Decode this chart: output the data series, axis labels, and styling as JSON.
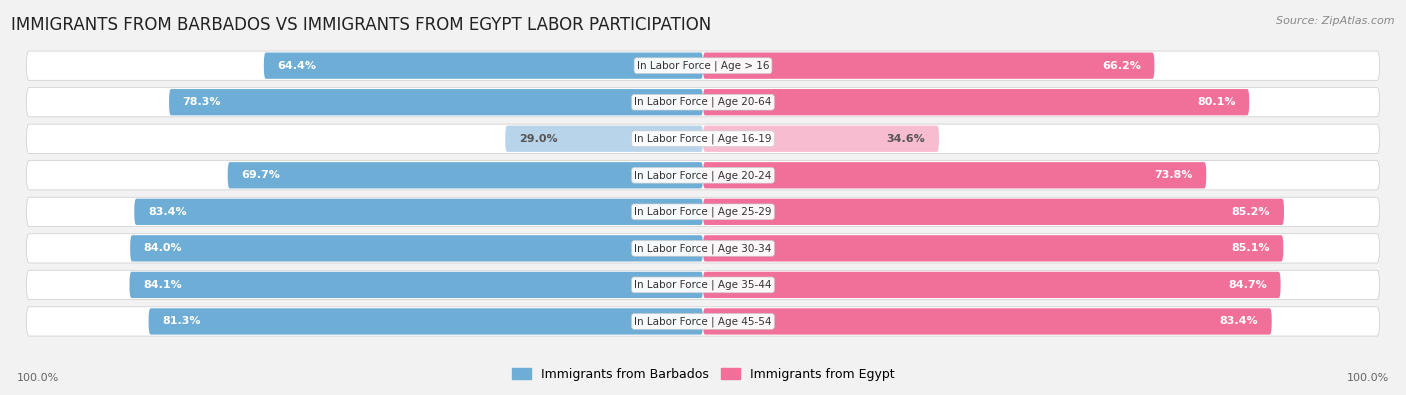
{
  "title": "IMMIGRANTS FROM BARBADOS VS IMMIGRANTS FROM EGYPT LABOR PARTICIPATION",
  "source": "Source: ZipAtlas.com",
  "categories": [
    "In Labor Force | Age > 16",
    "In Labor Force | Age 20-64",
    "In Labor Force | Age 16-19",
    "In Labor Force | Age 20-24",
    "In Labor Force | Age 25-29",
    "In Labor Force | Age 30-34",
    "In Labor Force | Age 35-44",
    "In Labor Force | Age 45-54"
  ],
  "barbados_values": [
    64.4,
    78.3,
    29.0,
    69.7,
    83.4,
    84.0,
    84.1,
    81.3
  ],
  "egypt_values": [
    66.2,
    80.1,
    34.6,
    73.8,
    85.2,
    85.1,
    84.7,
    83.4
  ],
  "barbados_color": "#6eaed6",
  "egypt_color": "#f0709a",
  "barbados_color_light": "#b8d4ea",
  "egypt_color_light": "#f8bcd0",
  "background_color": "#f2f2f2",
  "legend_barbados": "Immigrants from Barbados",
  "legend_egypt": "Immigrants from Egypt",
  "title_fontsize": 12,
  "bottom_label": "100.0%"
}
